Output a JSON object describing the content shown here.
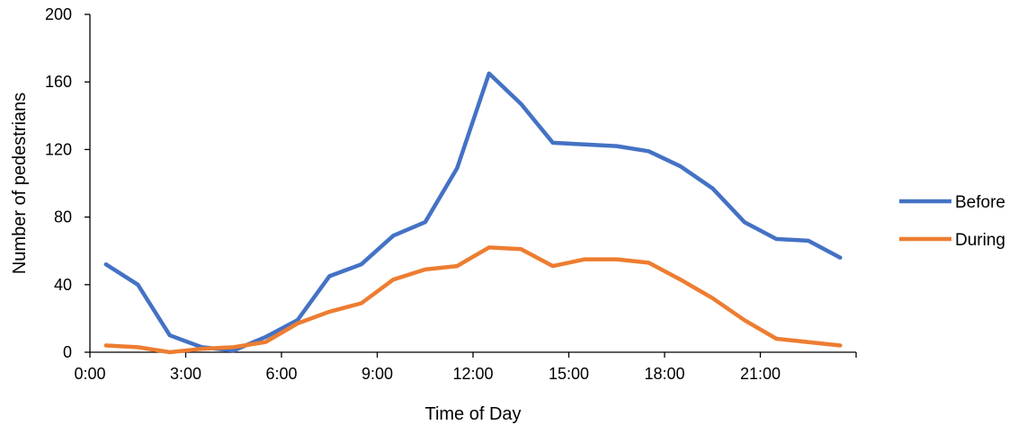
{
  "chart_data": {
    "type": "line",
    "xlabel": "Time of Day",
    "ylabel": "Number of pedestrians",
    "ylim": [
      0,
      200
    ],
    "yticks": [
      0,
      40,
      80,
      120,
      160,
      200
    ],
    "x": [
      0,
      1,
      2,
      3,
      4,
      5,
      6,
      7,
      8,
      9,
      10,
      11,
      12,
      13,
      14,
      15,
      16,
      17,
      18,
      19,
      20,
      21,
      22,
      23
    ],
    "xtick_positions": [
      0,
      3,
      6,
      9,
      12,
      15,
      18,
      21
    ],
    "xtick_labels": [
      "0:00",
      "3:00",
      "6:00",
      "9:00",
      "12:00",
      "15:00",
      "18:00",
      "21:00"
    ],
    "legend_position": "right",
    "grid": false,
    "series": [
      {
        "name": "Before",
        "color": "#4472C4",
        "values": [
          52,
          40,
          10,
          3,
          1,
          9,
          19,
          45,
          52,
          69,
          77,
          109,
          165,
          147,
          124,
          123,
          122,
          119,
          110,
          97,
          77,
          67,
          66,
          56
        ]
      },
      {
        "name": "During",
        "color": "#ED7D31",
        "values": [
          4,
          3,
          0,
          2,
          3,
          6,
          17,
          24,
          29,
          43,
          49,
          51,
          62,
          61,
          51,
          55,
          55,
          53,
          43,
          32,
          19,
          8,
          6,
          4
        ]
      }
    ]
  }
}
